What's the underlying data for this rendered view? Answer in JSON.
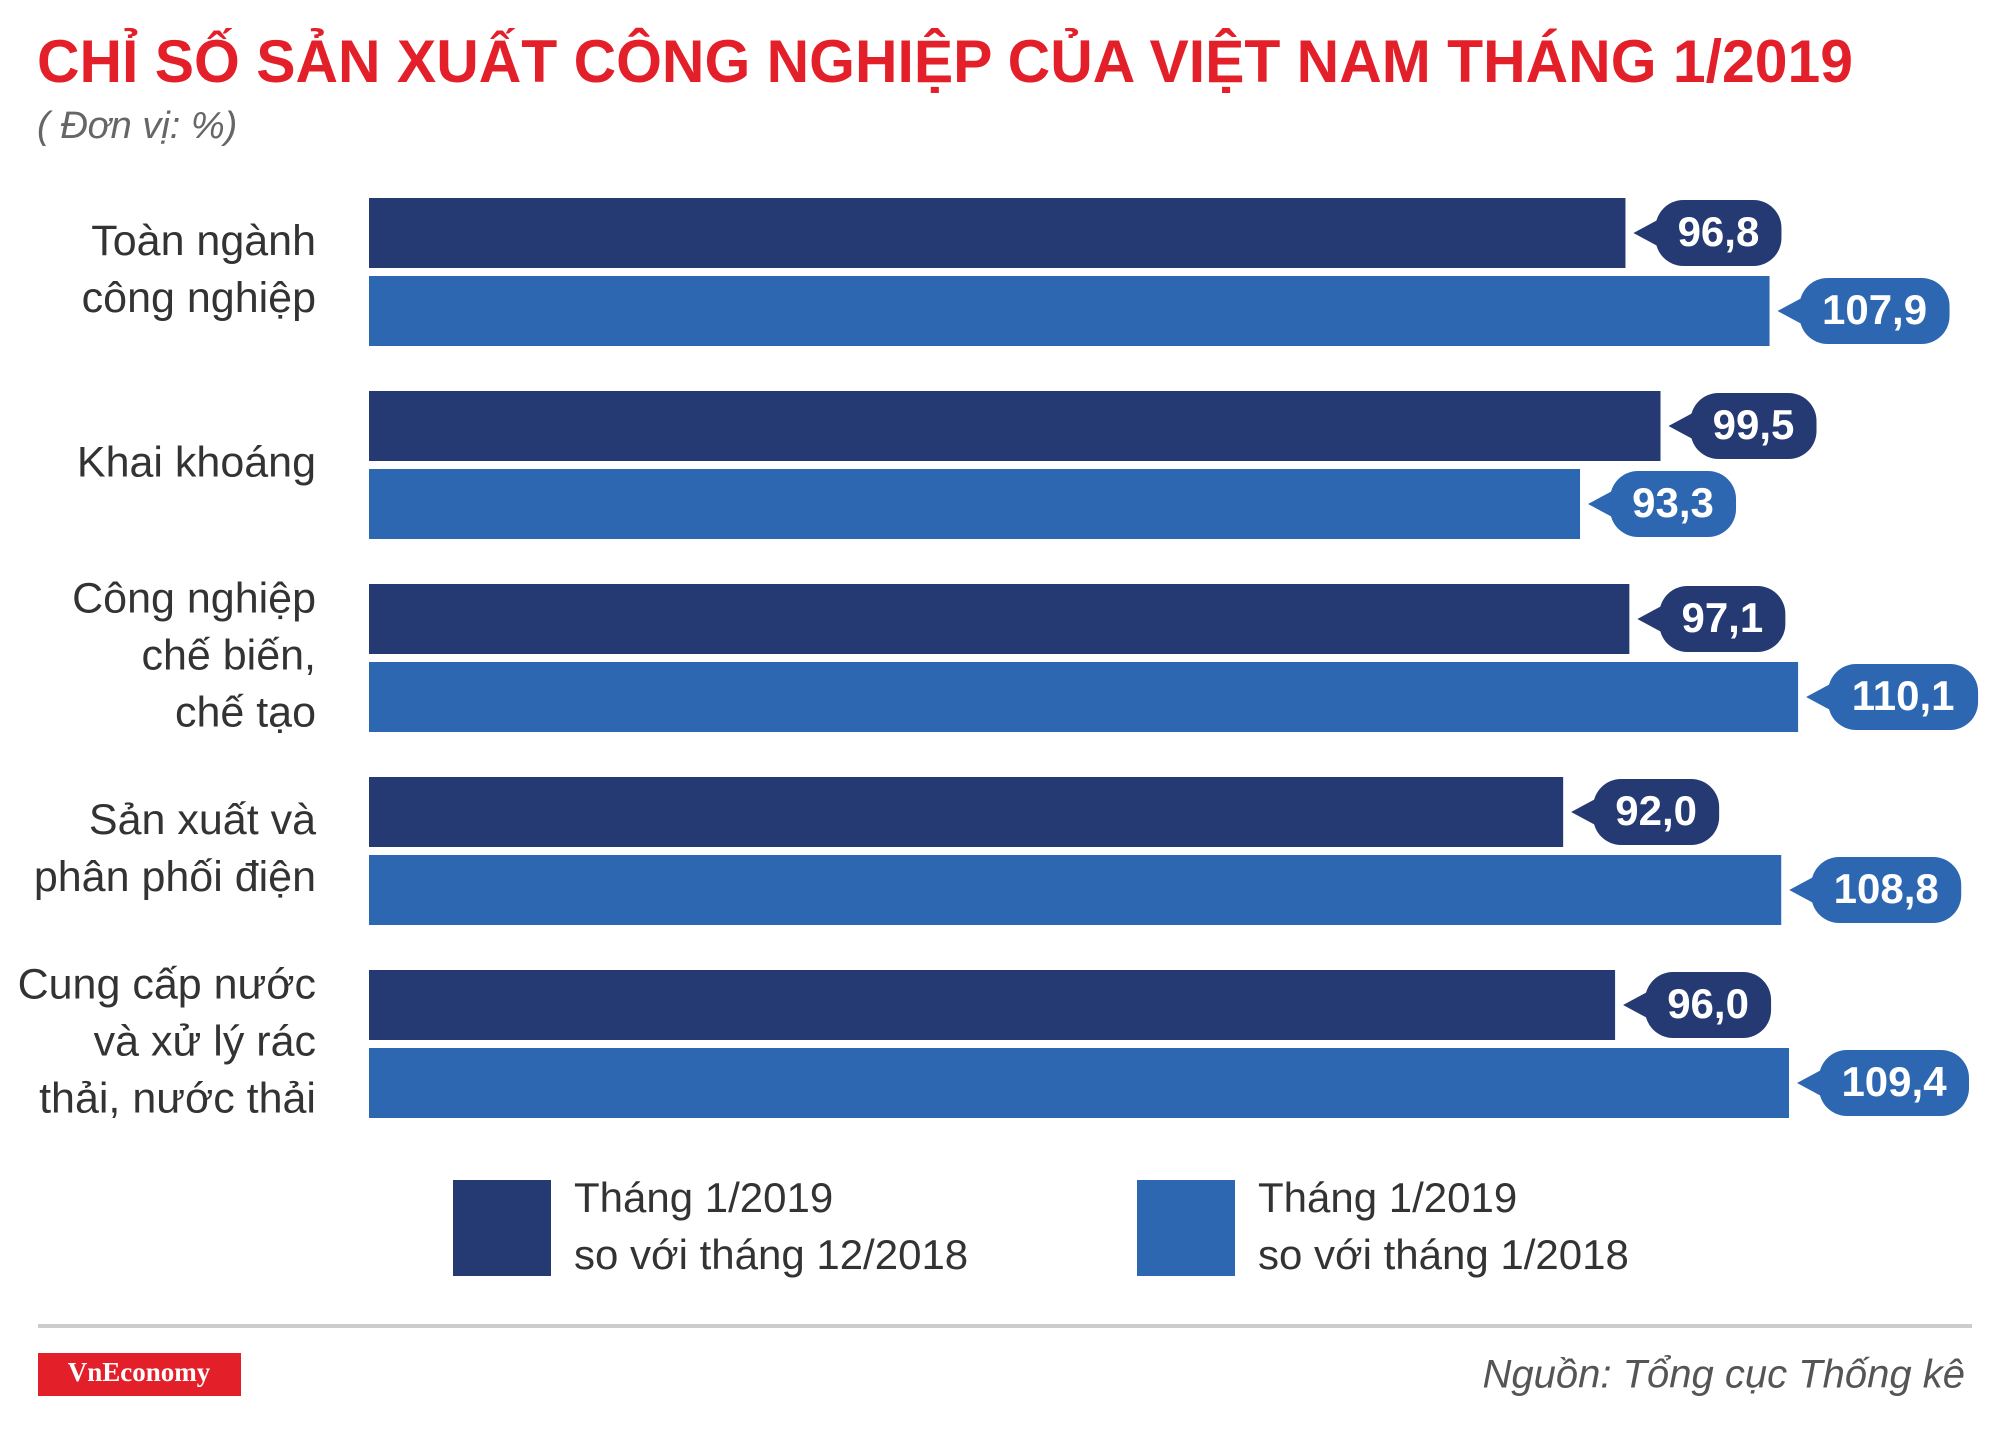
{
  "chart_data": {
    "type": "hbar-grouped",
    "title": "CHỈ SỐ SẢN XUẤT CÔNG NGHIỆP CỦA VIỆT NAM THÁNG 1/2019",
    "subtitle": "( Đơn vị: %)",
    "categories": [
      [
        "Toàn ngành",
        "công nghiệp"
      ],
      [
        "Khai khoáng"
      ],
      [
        "Công nghiệp",
        "chế biến,",
        "chế tạo"
      ],
      [
        "Sản xuất và",
        "phân phối điện"
      ],
      [
        "Cung cấp nước",
        "và xử lý rác",
        "thải, nước thải"
      ]
    ],
    "series": [
      {
        "name": [
          "Tháng 1/2019",
          "so với tháng 12/2018"
        ],
        "color": "#253a73",
        "values": [
          96.8,
          99.5,
          97.1,
          92.0,
          96.0
        ],
        "value_labels": [
          "96,8",
          "99,5",
          "97,1",
          "92,0",
          "96,0"
        ]
      },
      {
        "name": [
          "Tháng 1/2019",
          "so với tháng 1/2018"
        ],
        "color": "#2e67b1",
        "values": [
          107.9,
          93.3,
          110.1,
          108.8,
          109.4
        ],
        "value_labels": [
          "107,9",
          "93,3",
          "110,1",
          "108,8",
          "109,4"
        ]
      }
    ],
    "logo": "VnEconomy",
    "source": "Nguồn: Tổng cục Thống kê"
  }
}
